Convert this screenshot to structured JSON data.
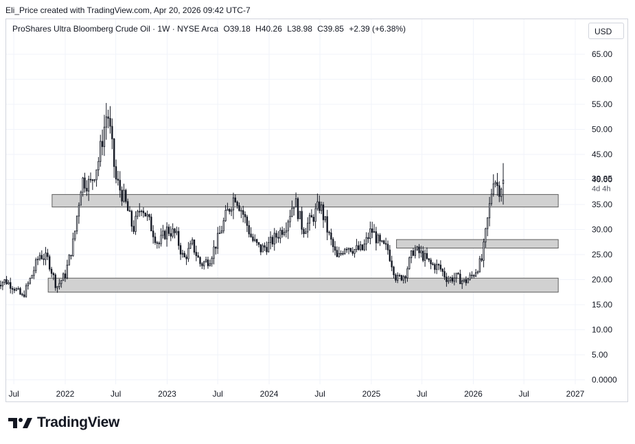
{
  "header": {
    "credit": "Eli_Price created with TradingView.com, Apr 20, 2026 09:42 UTC-7"
  },
  "legend": {
    "symbol": "ProShares Ultra Bloomberg Crude Oil · 1W · NYSE Arca",
    "open": "O39.18",
    "high": "H40.26",
    "low": "L38.98",
    "close": "C39.85",
    "change": "+2.39 (+6.38%)"
  },
  "currency": "USD",
  "price_label": {
    "value": "39.85",
    "countdown": "4d 4h"
  },
  "logo": {
    "text": "TradingView"
  },
  "colors": {
    "candle": "#131722",
    "zone_fill": "#d1d1d1",
    "zone_stroke": "#5d5d5d",
    "grid": "#f0f3fa",
    "axis_text": "#131722"
  },
  "chart_data": {
    "type": "candlestick",
    "interval": "1W",
    "ylim": [
      0,
      68
    ],
    "y_ticks": [
      "65.00",
      "60.00",
      "55.00",
      "50.00",
      "45.00",
      "40.00",
      "35.00",
      "30.00",
      "25.00",
      "20.00",
      "15.00",
      "10.00",
      "5.00",
      "0.0000"
    ],
    "x_ticks": [
      "Jul",
      "2022",
      "Jul",
      "2023",
      "Jul",
      "2024",
      "Jul",
      "2025",
      "Jul",
      "2026",
      "Jul",
      "2027"
    ],
    "x_tick_dates": [
      "2021-07-01",
      "2022-01-01",
      "2022-07-01",
      "2023-01-01",
      "2023-07-01",
      "2024-01-01",
      "2024-07-01",
      "2025-01-01",
      "2025-07-01",
      "2026-01-01",
      "2026-07-01",
      "2027-01-01"
    ],
    "support_resistance_zones": [
      {
        "from": "2021-11-01",
        "to": "2026-11-01",
        "low": 17.5,
        "high": 20.3
      },
      {
        "from": "2025-04-01",
        "to": "2026-11-01",
        "low": 26.3,
        "high": 28.0
      },
      {
        "from": "2021-11-15",
        "to": "2026-11-01",
        "low": 34.5,
        "high": 37.0
      }
    ],
    "close_path": [
      [
        "2021-05-01",
        19.2
      ],
      [
        "2021-06-01",
        19.8
      ],
      [
        "2021-07-01",
        18.5
      ],
      [
        "2021-08-01",
        16.5
      ],
      [
        "2021-09-01",
        20.5
      ],
      [
        "2021-10-01",
        25.0
      ],
      [
        "2021-11-01",
        24.0
      ],
      [
        "2021-12-01",
        18.5
      ],
      [
        "2022-01-01",
        21.0
      ],
      [
        "2022-02-01",
        28.0
      ],
      [
        "2022-03-01",
        40.0
      ],
      [
        "2022-04-01",
        39.0
      ],
      [
        "2022-05-01",
        44.0
      ],
      [
        "2022-06-01",
        54.0
      ],
      [
        "2022-07-01",
        40.0
      ],
      [
        "2022-08-01",
        36.0
      ],
      [
        "2022-09-01",
        30.0
      ],
      [
        "2022-10-01",
        35.0
      ],
      [
        "2022-11-01",
        31.0
      ],
      [
        "2022-12-01",
        27.0
      ],
      [
        "2023-01-01",
        30.0
      ],
      [
        "2023-02-01",
        29.0
      ],
      [
        "2023-03-01",
        24.0
      ],
      [
        "2023-04-01",
        27.0
      ],
      [
        "2023-05-01",
        23.0
      ],
      [
        "2023-06-01",
        24.0
      ],
      [
        "2023-07-01",
        28.0
      ],
      [
        "2023-08-01",
        33.0
      ],
      [
        "2023-09-01",
        37.0
      ],
      [
        "2023-10-01",
        33.0
      ],
      [
        "2023-11-01",
        28.0
      ],
      [
        "2023-12-01",
        26.0
      ],
      [
        "2024-01-01",
        27.0
      ],
      [
        "2024-02-01",
        29.0
      ],
      [
        "2024-03-01",
        31.0
      ],
      [
        "2024-04-01",
        36.0
      ],
      [
        "2024-05-01",
        30.0
      ],
      [
        "2024-06-01",
        32.0
      ],
      [
        "2024-07-01",
        35.0
      ],
      [
        "2024-08-01",
        29.0
      ],
      [
        "2024-09-01",
        24.0
      ],
      [
        "2024-10-01",
        27.0
      ],
      [
        "2024-11-01",
        26.0
      ],
      [
        "2024-12-01",
        26.0
      ],
      [
        "2025-01-01",
        30.0
      ],
      [
        "2025-02-01",
        27.0
      ],
      [
        "2025-03-01",
        26.0
      ],
      [
        "2025-04-01",
        20.0
      ],
      [
        "2025-05-01",
        21.0
      ],
      [
        "2025-06-01",
        26.0
      ],
      [
        "2025-07-01",
        25.0
      ],
      [
        "2025-08-01",
        23.0
      ],
      [
        "2025-09-01",
        22.5
      ],
      [
        "2025-10-01",
        20.0
      ],
      [
        "2025-11-01",
        20.5
      ],
      [
        "2025-12-01",
        19.5
      ],
      [
        "2026-01-01",
        21.0
      ],
      [
        "2026-02-01",
        24.0
      ],
      [
        "2026-03-01",
        35.0
      ],
      [
        "2026-03-15",
        41.0
      ],
      [
        "2026-04-01",
        38.0
      ],
      [
        "2026-04-20",
        39.85
      ]
    ],
    "last_bar": {
      "open": 39.18,
      "high": 40.26,
      "low": 38.98,
      "close": 39.85
    }
  }
}
